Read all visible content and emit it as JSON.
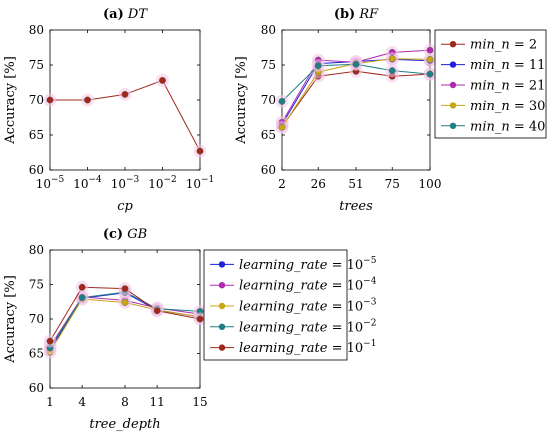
{
  "chart_data": [
    {
      "id": "dt",
      "type": "line",
      "panel_label": "(a)",
      "title": "DT",
      "xlabel": "cp",
      "ylabel": "Accuracy [%]",
      "xscale": "log",
      "xlim": [
        1e-05,
        0.1
      ],
      "ylim": [
        60,
        80
      ],
      "x_ticks": [
        1e-05,
        0.0001,
        0.001,
        0.01,
        0.1
      ],
      "x_tick_labels": [
        {
          "base": "10",
          "exp": "−5"
        },
        {
          "base": "10",
          "exp": "−4"
        },
        {
          "base": "10",
          "exp": "−3"
        },
        {
          "base": "10",
          "exp": "−2"
        },
        {
          "base": "10",
          "exp": "−1"
        }
      ],
      "y_ticks": [
        60,
        65,
        70,
        75,
        80
      ],
      "y_tick_labels": [
        "60",
        "65",
        "70",
        "75",
        "80"
      ],
      "legend": null,
      "series": [
        {
          "color": "#a0281c",
          "x": [
            1e-05,
            0.0001,
            0.001,
            0.01,
            0.1
          ],
          "values": [
            70.0,
            70.0,
            70.8,
            72.8,
            62.7
          ]
        }
      ]
    },
    {
      "id": "rf",
      "type": "line",
      "panel_label": "(b)",
      "title": "RF",
      "xlabel": "trees",
      "ylabel": "Accuracy [%]",
      "xscale": "linear",
      "xlim": [
        2,
        100
      ],
      "ylim": [
        60,
        80
      ],
      "x_ticks": [
        2,
        26,
        51,
        75,
        100
      ],
      "x_tick_labels": [
        "2",
        "26",
        "51",
        "75",
        "100"
      ],
      "y_ticks": [
        60,
        65,
        70,
        75,
        80
      ],
      "y_tick_labels": [
        "60",
        "65",
        "70",
        "75",
        "80"
      ],
      "legend": "right-outside",
      "series": [
        {
          "name": "min_n",
          "value_text": "2",
          "color": "#a0281c",
          "x": [
            2,
            26,
            51,
            75,
            100
          ],
          "values": [
            66.2,
            73.4,
            74.1,
            73.4,
            73.7
          ]
        },
        {
          "name": "min_n",
          "value_text": "11",
          "color": "#1f1fe0",
          "x": [
            2,
            26,
            51,
            75,
            100
          ],
          "values": [
            66.5,
            75.2,
            75.5,
            75.8,
            75.6
          ]
        },
        {
          "name": "min_n",
          "value_text": "21",
          "color": "#b02ab0",
          "x": [
            2,
            26,
            51,
            75,
            100
          ],
          "values": [
            66.8,
            75.7,
            75.4,
            76.8,
            77.1
          ]
        },
        {
          "name": "min_n",
          "value_text": "30",
          "color": "#c7a612",
          "x": [
            2,
            26,
            51,
            75,
            100
          ],
          "values": [
            66.1,
            74.0,
            75.2,
            75.9,
            75.8
          ]
        },
        {
          "name": "min_n",
          "value_text": "40",
          "color": "#1f7f86",
          "x": [
            2,
            26,
            51,
            75,
            100
          ],
          "values": [
            69.8,
            74.9,
            75.1,
            74.2,
            73.7
          ]
        }
      ]
    },
    {
      "id": "gb",
      "type": "line",
      "panel_label": "(c)",
      "title": "GB",
      "xlabel": "tree_depth",
      "ylabel": "Accuracy [%]",
      "xscale": "linear",
      "xlim": [
        1,
        15
      ],
      "ylim": [
        60,
        80
      ],
      "x_ticks": [
        1,
        4,
        8,
        11,
        15
      ],
      "x_tick_labels": [
        "1",
        "4",
        "8",
        "11",
        "15"
      ],
      "y_ticks": [
        60,
        65,
        70,
        75,
        80
      ],
      "y_tick_labels": [
        "60",
        "65",
        "70",
        "75",
        "80"
      ],
      "legend": "right-outside",
      "series": [
        {
          "name": "learning_rate",
          "value_base": "10",
          "value_exp": "−5",
          "color": "#1f1fe0",
          "x": [
            1,
            4,
            8,
            11,
            15
          ],
          "values": [
            65.5,
            73.0,
            73.8,
            71.3,
            70.3
          ]
        },
        {
          "name": "learning_rate",
          "value_base": "10",
          "value_exp": "−4",
          "color": "#b02ab0",
          "x": [
            1,
            4,
            8,
            11,
            15
          ],
          "values": [
            66.0,
            73.2,
            72.7,
            71.6,
            70.7
          ]
        },
        {
          "name": "learning_rate",
          "value_base": "10",
          "value_exp": "−3",
          "color": "#c7a612",
          "x": [
            1,
            4,
            8,
            11,
            15
          ],
          "values": [
            65.2,
            72.9,
            72.4,
            71.3,
            70.3
          ]
        },
        {
          "name": "learning_rate",
          "value_base": "10",
          "value_exp": "−2",
          "color": "#1f7f86",
          "x": [
            1,
            4,
            8,
            11,
            15
          ],
          "values": [
            65.8,
            73.1,
            73.9,
            71.5,
            71.1
          ]
        },
        {
          "name": "learning_rate",
          "value_base": "10",
          "value_exp": "−1",
          "color": "#a0281c",
          "x": [
            1,
            4,
            8,
            11,
            15
          ],
          "values": [
            66.8,
            74.6,
            74.4,
            71.2,
            70.0
          ]
        }
      ]
    }
  ]
}
